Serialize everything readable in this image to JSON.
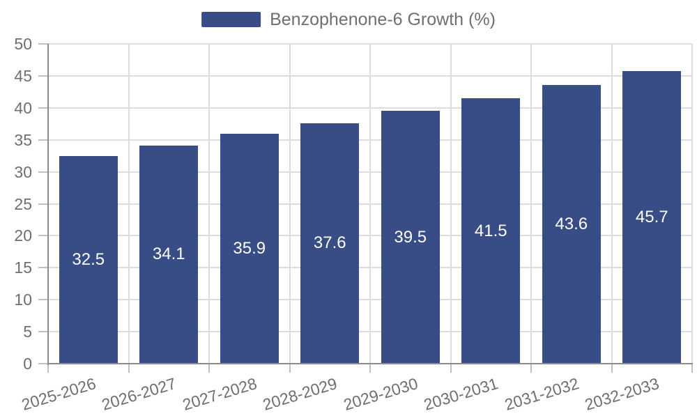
{
  "legend": {
    "label": "Benzophenone-6 Growth (%)",
    "color": "#384C86"
  },
  "chart_data": {
    "type": "bar",
    "title": "",
    "xlabel": "",
    "ylabel": "",
    "categories": [
      "2025-2026",
      "2026-2027",
      "2027-2028",
      "2028-2029",
      "2029-2030",
      "2030-2031",
      "2031-2032",
      "2032-2033"
    ],
    "series": [
      {
        "name": "Benzophenone-6 Growth (%)",
        "color": "#384C86",
        "values": [
          32.5,
          34.1,
          35.9,
          37.6,
          39.5,
          41.5,
          43.6,
          45.7
        ],
        "value_labels": [
          "32.5",
          "34.1",
          "35.9",
          "37.6",
          "39.5",
          "41.5",
          "43.6",
          "45.7"
        ]
      }
    ],
    "ylim": [
      0,
      50
    ],
    "yticks": [
      0,
      5,
      10,
      15,
      20,
      25,
      30,
      35,
      40,
      45,
      50
    ],
    "grid": true,
    "legend_position": "top",
    "bar_label_color": "#ffffff",
    "x_label_rotation_deg": -17
  },
  "colors": {
    "background": "#ffffff",
    "grid_line": "#dcdcdc",
    "tick_mark": "#c0c0c0",
    "axis_line": "#8c8c8c",
    "axis_text": "#6d6f73"
  }
}
